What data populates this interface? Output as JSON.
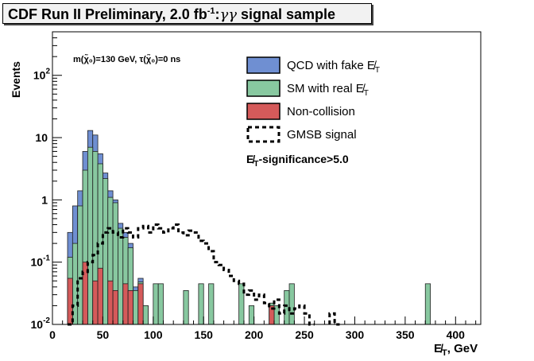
{
  "chart_data": {
    "type": "bar",
    "title_main": "CDF Run II Preliminary, 2.0 fb",
    "title_sup": "-1",
    "title_sep": ":",
    "title_gamma": "γγ",
    "title_tail": " signal sample",
    "ylabel": "Events",
    "xlabel_met": "E̸",
    "xlabel_sub": "T",
    "xlabel_unit": ", GeV",
    "annotation": "m(χ̃₀)=130 GeV, τ(χ̃₀)=0 ns",
    "cut_label_met": "E̸",
    "cut_label_sub": "T",
    "cut_label_tail": "-significance>5.0",
    "xlim": [
      0,
      425
    ],
    "ylim": [
      0.01,
      500
    ],
    "yscale": "log",
    "bin_width": 5,
    "x_ticks": [
      0,
      50,
      100,
      150,
      200,
      250,
      300,
      350,
      400
    ],
    "y_ticks": [
      {
        "value": 0.01,
        "base": "10",
        "exp": "-2"
      },
      {
        "value": 0.1,
        "base": "10",
        "exp": "-1"
      },
      {
        "value": 1,
        "base": "1",
        "exp": ""
      },
      {
        "value": 10,
        "base": "10",
        "exp": ""
      },
      {
        "value": 100,
        "base": "10",
        "exp": "2"
      }
    ],
    "legend": [
      {
        "label": "QCD with fake ",
        "met": "E̸",
        "sub": "T",
        "color": "#6f8fd2",
        "style": "box"
      },
      {
        "label": "SM with real ",
        "met": "E̸",
        "sub": "T",
        "color": "#88c8a0",
        "style": "box"
      },
      {
        "label": "Non-collision",
        "met": "",
        "sub": "",
        "color": "#d55a5a",
        "style": "box"
      },
      {
        "label": "GMSB signal",
        "met": "",
        "sub": "",
        "color": "#000000",
        "style": "dashed"
      }
    ],
    "series": [
      {
        "name": "QCD with fake E̸T",
        "color": "#6f8fd2",
        "values": [
          {
            "x": 15,
            "y": 0.3
          },
          {
            "x": 20,
            "y": 0.8
          },
          {
            "x": 25,
            "y": 1.4
          },
          {
            "x": 30,
            "y": 6
          },
          {
            "x": 35,
            "y": 13
          },
          {
            "x": 40,
            "y": 11
          },
          {
            "x": 45,
            "y": 5.5
          },
          {
            "x": 50,
            "y": 2.7
          },
          {
            "x": 55,
            "y": 1.4
          },
          {
            "x": 60,
            "y": 1.0
          },
          {
            "x": 65,
            "y": 0.42
          },
          {
            "x": 70,
            "y": 0.3
          },
          {
            "x": 75,
            "y": 0.2
          },
          {
            "x": 80,
            "y": 0.04
          },
          {
            "x": 85,
            "y": 0.055
          },
          {
            "x": 90,
            "y": 0.02
          }
        ]
      },
      {
        "name": "SM with real E̸T",
        "color": "#88c8a0",
        "values": [
          {
            "x": 15,
            "y": 0.12
          },
          {
            "x": 20,
            "y": 0.2
          },
          {
            "x": 25,
            "y": 0.8
          },
          {
            "x": 30,
            "y": 3
          },
          {
            "x": 35,
            "y": 7
          },
          {
            "x": 40,
            "y": 6
          },
          {
            "x": 45,
            "y": 3.8
          },
          {
            "x": 50,
            "y": 2.2
          },
          {
            "x": 55,
            "y": 1.1
          },
          {
            "x": 60,
            "y": 0.9
          },
          {
            "x": 65,
            "y": 0.35
          },
          {
            "x": 70,
            "y": 0.25
          },
          {
            "x": 75,
            "y": 0.17
          },
          {
            "x": 80,
            "y": 0.035
          },
          {
            "x": 85,
            "y": 0.048
          },
          {
            "x": 90,
            "y": 0.02
          },
          {
            "x": 100,
            "y": 0.045
          },
          {
            "x": 105,
            "y": 0.045
          },
          {
            "x": 130,
            "y": 0.035
          },
          {
            "x": 145,
            "y": 0.045
          },
          {
            "x": 155,
            "y": 0.045
          },
          {
            "x": 185,
            "y": 0.045
          },
          {
            "x": 195,
            "y": 0.02
          },
          {
            "x": 215,
            "y": 0.022
          },
          {
            "x": 220,
            "y": 0.02
          },
          {
            "x": 230,
            "y": 0.035
          },
          {
            "x": 235,
            "y": 0.045
          },
          {
            "x": 370,
            "y": 0.045
          }
        ]
      },
      {
        "name": "Non-collision",
        "color": "#d55a5a",
        "values": [
          {
            "x": 15,
            "y": 0.055
          },
          {
            "x": 30,
            "y": 0.1
          },
          {
            "x": 40,
            "y": 0.05
          },
          {
            "x": 45,
            "y": 0.08
          },
          {
            "x": 55,
            "y": 0.05
          },
          {
            "x": 60,
            "y": 0.035
          },
          {
            "x": 70,
            "y": 0.045
          },
          {
            "x": 75,
            "y": 0.035
          },
          {
            "x": 85,
            "y": 0.045
          },
          {
            "x": 215,
            "y": 0.02
          }
        ]
      },
      {
        "name": "GMSB signal",
        "color": "#000000",
        "values": [
          {
            "x": 15,
            "y": 0.01
          },
          {
            "x": 20,
            "y": 0.02
          },
          {
            "x": 25,
            "y": 0.055
          },
          {
            "x": 30,
            "y": 0.07
          },
          {
            "x": 35,
            "y": 0.1
          },
          {
            "x": 40,
            "y": 0.13
          },
          {
            "x": 45,
            "y": 0.2
          },
          {
            "x": 50,
            "y": 0.3
          },
          {
            "x": 55,
            "y": 0.35
          },
          {
            "x": 60,
            "y": 0.3
          },
          {
            "x": 65,
            "y": 0.25
          },
          {
            "x": 70,
            "y": 0.35
          },
          {
            "x": 75,
            "y": 0.3
          },
          {
            "x": 80,
            "y": 0.25
          },
          {
            "x": 85,
            "y": 0.35
          },
          {
            "x": 90,
            "y": 0.38
          },
          {
            "x": 95,
            "y": 0.3
          },
          {
            "x": 100,
            "y": 0.4
          },
          {
            "x": 105,
            "y": 0.35
          },
          {
            "x": 110,
            "y": 0.3
          },
          {
            "x": 115,
            "y": 0.35
          },
          {
            "x": 120,
            "y": 0.4
          },
          {
            "x": 125,
            "y": 0.3
          },
          {
            "x": 130,
            "y": 0.27
          },
          {
            "x": 135,
            "y": 0.32
          },
          {
            "x": 140,
            "y": 0.3
          },
          {
            "x": 145,
            "y": 0.22
          },
          {
            "x": 150,
            "y": 0.2
          },
          {
            "x": 155,
            "y": 0.15
          },
          {
            "x": 160,
            "y": 0.1
          },
          {
            "x": 165,
            "y": 0.09
          },
          {
            "x": 170,
            "y": 0.075
          },
          {
            "x": 175,
            "y": 0.06
          },
          {
            "x": 180,
            "y": 0.05
          },
          {
            "x": 185,
            "y": 0.045
          },
          {
            "x": 190,
            "y": 0.03
          },
          {
            "x": 195,
            "y": 0.035
          },
          {
            "x": 200,
            "y": 0.025
          },
          {
            "x": 205,
            "y": 0.03
          },
          {
            "x": 210,
            "y": 0.022
          },
          {
            "x": 215,
            "y": 0.018
          },
          {
            "x": 220,
            "y": 0.025
          },
          {
            "x": 225,
            "y": 0.015
          },
          {
            "x": 230,
            "y": 0.02
          },
          {
            "x": 235,
            "y": 0.015
          },
          {
            "x": 240,
            "y": 0.018
          },
          {
            "x": 245,
            "y": 0.02
          },
          {
            "x": 250,
            "y": 0.015
          },
          {
            "x": 255,
            "y": 0.01
          },
          {
            "x": 275,
            "y": 0.015
          },
          {
            "x": 280,
            "y": 0.01
          }
        ]
      }
    ]
  }
}
